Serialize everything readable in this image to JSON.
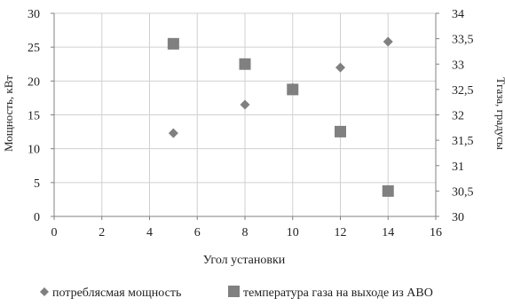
{
  "chart_data": {
    "type": "scatter",
    "xlabel": "Угол установки",
    "ylabel_left": "Мощность, кВт",
    "ylabel_right": "Тгаза, градусы",
    "grid": true,
    "legend_position": "bottom",
    "x_axis": {
      "min": 0,
      "max": 16,
      "ticks": [
        "0",
        "2",
        "4",
        "6",
        "8",
        "10",
        "12",
        "14",
        "16"
      ]
    },
    "y_left": {
      "min": 0,
      "max": 30,
      "ticks": [
        "0",
        "5",
        "10",
        "15",
        "20",
        "25",
        "30"
      ]
    },
    "y_right": {
      "min": 30,
      "max": 34,
      "ticks": [
        "30",
        "30,5",
        "31",
        "31,5",
        "32",
        "32,5",
        "33",
        "33,5",
        "34"
      ]
    },
    "series": [
      {
        "name": "потреблясмая мощность",
        "marker": "diamond",
        "axis": "left",
        "color": "#808080",
        "points": [
          {
            "x": 5,
            "y": 12.3
          },
          {
            "x": 8,
            "y": 16.5
          },
          {
            "x": 10,
            "y": 19.0
          },
          {
            "x": 12,
            "y": 22.0
          },
          {
            "x": 14,
            "y": 25.8
          }
        ]
      },
      {
        "name": "температура газа на выходе из АВО",
        "marker": "square",
        "axis": "right",
        "color": "#808080",
        "points": [
          {
            "x": 5,
            "y": 33.4
          },
          {
            "x": 8,
            "y": 33.0
          },
          {
            "x": 10,
            "y": 32.5
          },
          {
            "x": 12,
            "y": 31.67
          },
          {
            "x": 14,
            "y": 30.5
          }
        ]
      }
    ]
  }
}
